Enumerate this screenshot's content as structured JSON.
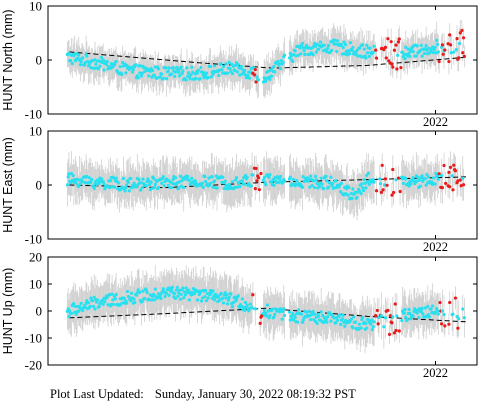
{
  "footer": {
    "label": "Plot Last Updated:",
    "timestamp": "Sunday, January 30, 2022 08:19:32 PST"
  },
  "colors": {
    "main_points": "#27e0f0",
    "recent_points": "#e81c1c",
    "error_bars": "#cfcfcf",
    "trend": "#000000"
  },
  "chart_data": [
    {
      "type": "scatter",
      "ylabel": "HUNT North (mm)",
      "ylim": [
        -10,
        10
      ],
      "yticks": [
        -10,
        0,
        10
      ],
      "x_range": [
        2016.55,
        2022.45
      ],
      "year_marker": {
        "label": "2022",
        "x": 2022.0
      },
      "series": [
        {
          "role": "main",
          "key_points": [
            [
              2016.6,
              0.5
            ],
            [
              2017.0,
              -0.5
            ],
            [
              2017.5,
              -2.0
            ],
            [
              2018.0,
              -2.5
            ],
            [
              2018.5,
              -2.5
            ],
            [
              2019.0,
              -1.5
            ],
            [
              2019.5,
              -3.0
            ],
            [
              2020.0,
              2.0
            ],
            [
              2020.5,
              2.5
            ],
            [
              2021.0,
              1.5
            ],
            [
              2021.5,
              1.0
            ],
            [
              2022.0,
              2.5
            ],
            [
              2022.4,
              2.5
            ]
          ],
          "error_min": 2.0,
          "error_max": 3.5
        },
        {
          "role": "recent",
          "ranges": [
            [
              2019.3,
              2019.45
            ],
            [
              2021.1,
              2021.5
            ],
            [
              2022.05,
              2022.45
            ]
          ],
          "error_min": 1.5,
          "error_max": 2.5
        }
      ],
      "trend": [
        [
          2016.6,
          1.5
        ],
        [
          2018.5,
          -0.5
        ],
        [
          2019.6,
          -1.5
        ],
        [
          2021.0,
          -1.0
        ],
        [
          2022.45,
          0.5
        ]
      ]
    },
    {
      "type": "scatter",
      "ylabel": "HUNT East (mm)",
      "ylim": [
        -10,
        10
      ],
      "yticks": [
        -10,
        0,
        10
      ],
      "x_range": [
        2016.55,
        2022.45
      ],
      "year_marker": {
        "label": "2022",
        "x": 2022.0
      },
      "series": [
        {
          "role": "main",
          "key_points": [
            [
              2016.6,
              1.0
            ],
            [
              2017.0,
              0.5
            ],
            [
              2017.5,
              0.0
            ],
            [
              2018.0,
              0.5
            ],
            [
              2018.5,
              0.5
            ],
            [
              2019.0,
              0.5
            ],
            [
              2019.5,
              1.0
            ],
            [
              2020.0,
              0.5
            ],
            [
              2020.5,
              0.5
            ],
            [
              2020.8,
              -2.0
            ],
            [
              2021.0,
              1.0
            ],
            [
              2021.5,
              0.5
            ],
            [
              2022.0,
              1.0
            ],
            [
              2022.4,
              1.5
            ]
          ],
          "error_min": 2.0,
          "error_max": 4.5
        },
        {
          "role": "recent",
          "ranges": [
            [
              2019.3,
              2019.45
            ],
            [
              2021.1,
              2021.5
            ],
            [
              2022.05,
              2022.45
            ]
          ],
          "error_min": 2.0,
          "error_max": 3.0
        }
      ],
      "trend": [
        [
          2016.6,
          0.0
        ],
        [
          2018.0,
          -0.5
        ],
        [
          2019.5,
          0.5
        ],
        [
          2021.0,
          1.0
        ],
        [
          2022.45,
          1.5
        ]
      ]
    },
    {
      "type": "scatter",
      "ylabel": "HUNT Up (mm)",
      "ylim": [
        -20,
        20
      ],
      "yticks": [
        -20,
        -10,
        0,
        10,
        20
      ],
      "x_range": [
        2016.55,
        2022.45
      ],
      "year_marker": {
        "label": "2022",
        "x": 2022.0
      },
      "series": [
        {
          "role": "main",
          "key_points": [
            [
              2016.6,
              0.0
            ],
            [
              2017.0,
              3.0
            ],
            [
              2017.5,
              5.0
            ],
            [
              2018.0,
              7.0
            ],
            [
              2018.5,
              6.0
            ],
            [
              2019.0,
              4.0
            ],
            [
              2019.5,
              0.0
            ],
            [
              2020.0,
              -2.0
            ],
            [
              2020.5,
              -3.0
            ],
            [
              2021.0,
              -5.0
            ],
            [
              2021.5,
              -2.0
            ],
            [
              2022.0,
              0.0
            ],
            [
              2022.4,
              -1.0
            ]
          ],
          "error_min": 5.0,
          "error_max": 9.0
        },
        {
          "role": "recent",
          "ranges": [
            [
              2019.3,
              2019.45
            ],
            [
              2021.1,
              2021.5
            ],
            [
              2022.05,
              2022.45
            ]
          ],
          "error_min": 3.0,
          "error_max": 5.0
        }
      ],
      "trend": [
        [
          2016.6,
          -2.5
        ],
        [
          2018.0,
          -1.0
        ],
        [
          2019.5,
          1.0
        ],
        [
          2021.0,
          -2.0
        ],
        [
          2022.45,
          -4.0
        ]
      ]
    }
  ]
}
